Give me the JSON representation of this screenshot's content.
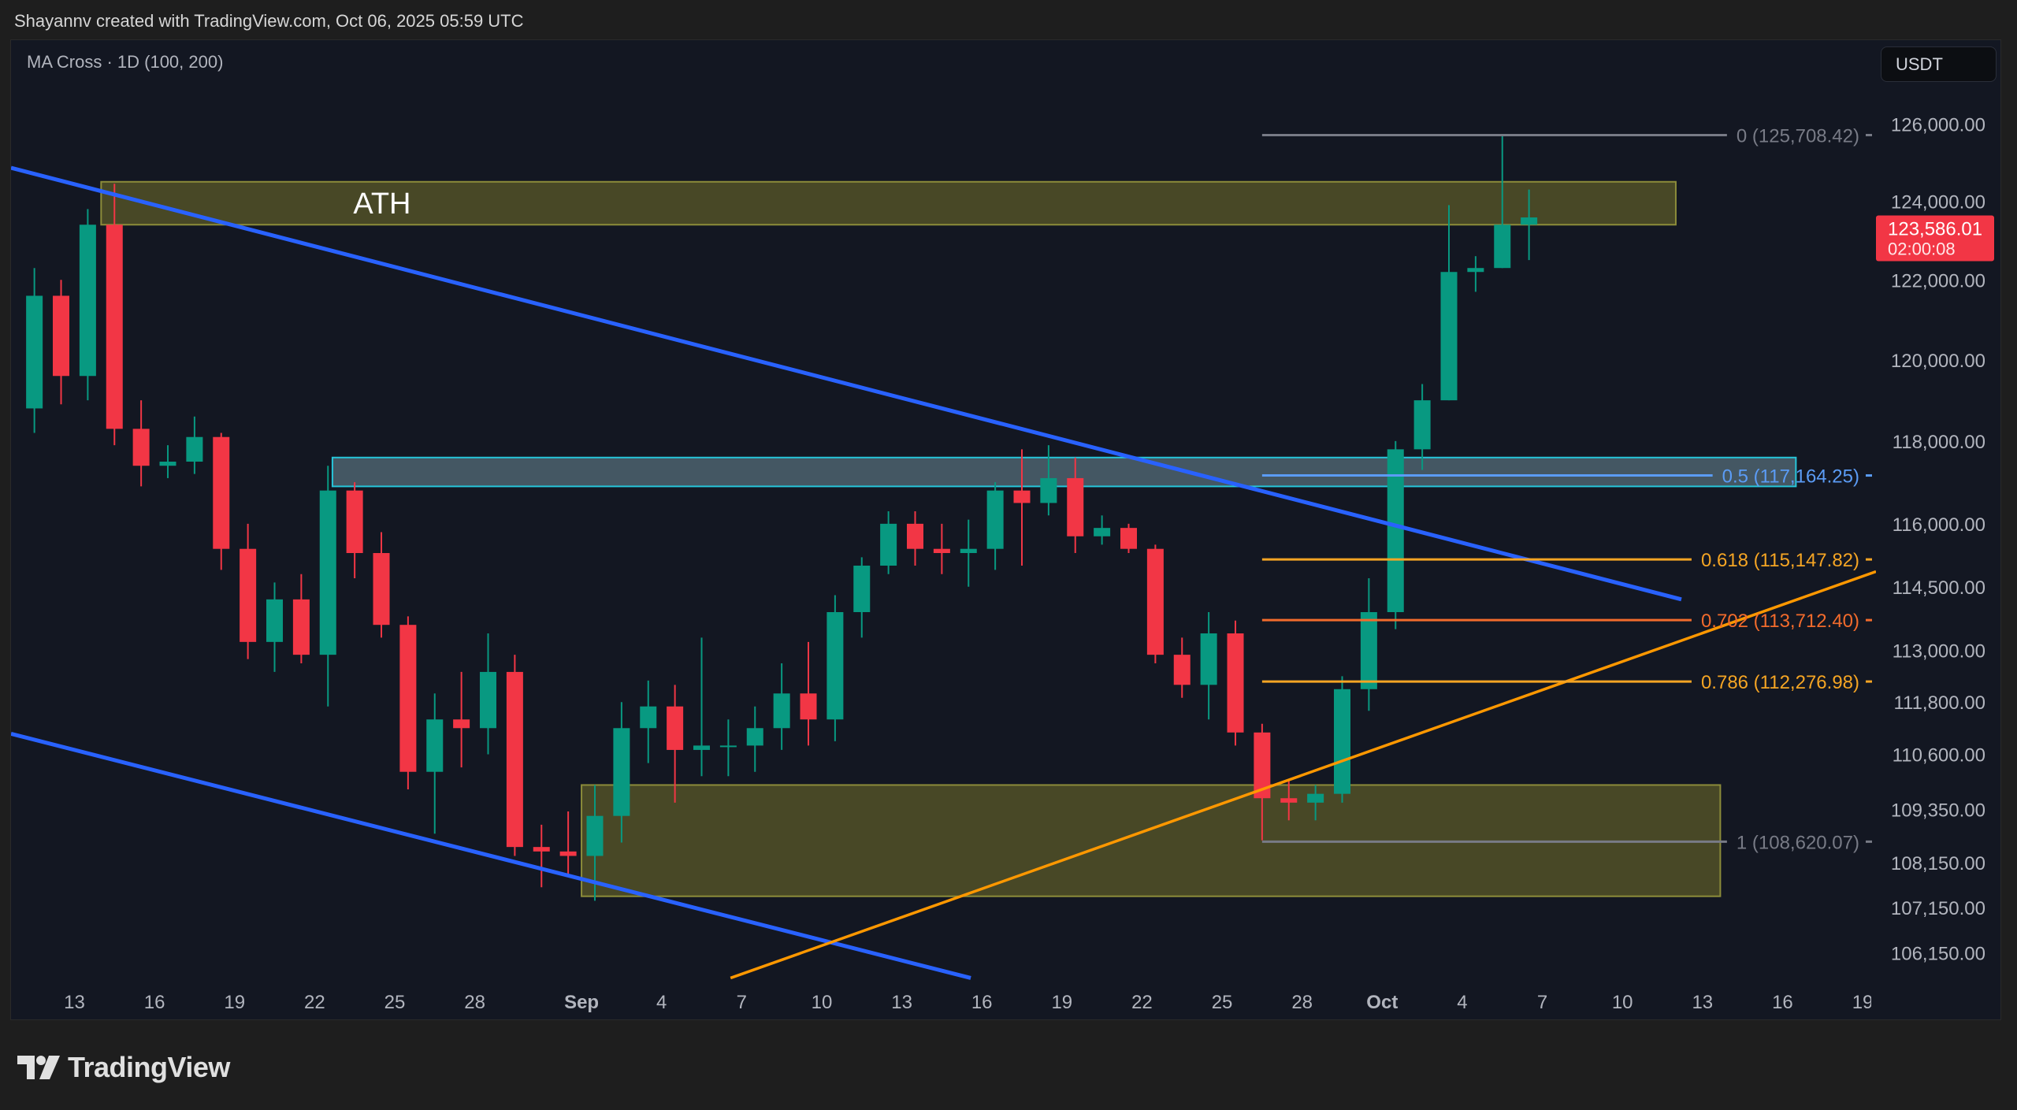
{
  "header": {
    "credit": "Shayannv created with TradingView.com, Oct 06, 2025 05:59 UTC"
  },
  "indicator": {
    "label": "MA Cross · 1D (100, 200)"
  },
  "currency": {
    "label": "USDT"
  },
  "branding": {
    "logo_text": "TradingView"
  },
  "colors": {
    "up": "#089981",
    "down": "#f23645",
    "trendline_blue": "#2962ff",
    "trendline_orange": "#ff9800",
    "zone_yellow": "#4b4b27",
    "zone_yellow_border": "#8c8c3a",
    "zone_blue": "#4a5e6a",
    "zone_blue_border": "#26c6da"
  },
  "chart_data": {
    "type": "candlestick",
    "symbol_quote": "USDT",
    "y_scale": "log",
    "ylim": [
      104700,
      128200
    ],
    "xlim": [
      "2025-08-10T15:00",
      "2025-10-19T12:00"
    ],
    "grid": false,
    "y_ticks": [
      126000,
      124000,
      122000,
      120000,
      118000,
      116000,
      114500,
      113000,
      111800,
      110600,
      109350,
      108150,
      107150,
      106150
    ],
    "y_tick_labels": [
      "126,000.00",
      "124,000.00",
      "122,000.00",
      "120,000.00",
      "118,000.00",
      "116,000.00",
      "114,500.00",
      "113,000.00",
      "111,800.00",
      "110,600.00",
      "109,350.00",
      "108,150.00",
      "107,150.00",
      "106,150.00"
    ],
    "x_ticks": [
      {
        "date": "2025-08-13",
        "label": "13"
      },
      {
        "date": "2025-08-16",
        "label": "16"
      },
      {
        "date": "2025-08-19",
        "label": "19"
      },
      {
        "date": "2025-08-22",
        "label": "22"
      },
      {
        "date": "2025-08-25",
        "label": "25"
      },
      {
        "date": "2025-08-28",
        "label": "28"
      },
      {
        "date": "2025-09-01",
        "label": "Sep",
        "bold": true
      },
      {
        "date": "2025-09-04",
        "label": "4"
      },
      {
        "date": "2025-09-07",
        "label": "7"
      },
      {
        "date": "2025-09-10",
        "label": "10"
      },
      {
        "date": "2025-09-13",
        "label": "13"
      },
      {
        "date": "2025-09-16",
        "label": "16"
      },
      {
        "date": "2025-09-19",
        "label": "19"
      },
      {
        "date": "2025-09-22",
        "label": "22"
      },
      {
        "date": "2025-09-25",
        "label": "25"
      },
      {
        "date": "2025-09-28",
        "label": "28"
      },
      {
        "date": "2025-10-01",
        "label": "Oct",
        "bold": true
      },
      {
        "date": "2025-10-04",
        "label": "4"
      },
      {
        "date": "2025-10-07",
        "label": "7"
      },
      {
        "date": "2025-10-10",
        "label": "10"
      },
      {
        "date": "2025-10-13",
        "label": "13"
      },
      {
        "date": "2025-10-16",
        "label": "16"
      },
      {
        "date": "2025-10-19",
        "label": "19"
      }
    ],
    "candles_columns": [
      "date",
      "open",
      "high",
      "low",
      "close"
    ],
    "candles": [
      [
        "2025-08-11",
        118800,
        122300,
        118200,
        121600
      ],
      [
        "2025-08-12",
        121600,
        122000,
        118900,
        119600
      ],
      [
        "2025-08-13",
        119600,
        123800,
        119000,
        123400
      ],
      [
        "2025-08-14",
        123400,
        124450,
        117900,
        118300
      ],
      [
        "2025-08-15",
        118300,
        119000,
        116900,
        117400
      ],
      [
        "2025-08-16",
        117400,
        117900,
        117100,
        117500
      ],
      [
        "2025-08-17",
        117500,
        118600,
        117200,
        118100
      ],
      [
        "2025-08-18",
        118100,
        118200,
        114900,
        115400
      ],
      [
        "2025-08-19",
        115400,
        116000,
        112800,
        113200
      ],
      [
        "2025-08-20",
        113200,
        114600,
        112500,
        114200
      ],
      [
        "2025-08-21",
        114200,
        114800,
        112700,
        112900
      ],
      [
        "2025-08-22",
        112900,
        117400,
        111700,
        116800
      ],
      [
        "2025-08-23",
        116800,
        117000,
        114700,
        115300
      ],
      [
        "2025-08-24",
        115300,
        115800,
        113300,
        113600
      ],
      [
        "2025-08-25",
        113600,
        113800,
        109800,
        110200
      ],
      [
        "2025-08-26",
        110200,
        112000,
        108800,
        111400
      ],
      [
        "2025-08-27",
        111400,
        112500,
        110300,
        111200
      ],
      [
        "2025-08-28",
        111200,
        113400,
        110600,
        112500
      ],
      [
        "2025-08-29",
        112500,
        112900,
        108300,
        108500
      ],
      [
        "2025-08-30",
        108500,
        109000,
        107600,
        108400
      ],
      [
        "2025-08-31",
        108400,
        109300,
        107900,
        108300
      ],
      [
        "2025-09-01",
        108300,
        109900,
        107300,
        109200
      ],
      [
        "2025-09-02",
        109200,
        111800,
        108600,
        111200
      ],
      [
        "2025-09-03",
        111200,
        112300,
        110400,
        111700
      ],
      [
        "2025-09-04",
        111700,
        112200,
        109500,
        110700
      ],
      [
        "2025-09-05",
        110700,
        113300,
        110100,
        110800
      ],
      [
        "2025-09-06",
        110800,
        111400,
        110100,
        110800
      ],
      [
        "2025-09-07",
        110800,
        111700,
        110200,
        111200
      ],
      [
        "2025-09-08",
        111200,
        112700,
        110700,
        112000
      ],
      [
        "2025-09-09",
        112000,
        113200,
        110800,
        111400
      ],
      [
        "2025-09-10",
        111400,
        114300,
        110900,
        113900
      ],
      [
        "2025-09-11",
        113900,
        115200,
        113300,
        115000
      ],
      [
        "2025-09-12",
        115000,
        116300,
        114800,
        116000
      ],
      [
        "2025-09-13",
        116000,
        116300,
        115000,
        115400
      ],
      [
        "2025-09-14",
        115400,
        116000,
        114800,
        115300
      ],
      [
        "2025-09-15",
        115300,
        116100,
        114500,
        115400
      ],
      [
        "2025-09-16",
        115400,
        117000,
        114900,
        116800
      ],
      [
        "2025-09-17",
        116800,
        117800,
        115000,
        116500
      ],
      [
        "2025-09-18",
        116500,
        117900,
        116200,
        117100
      ],
      [
        "2025-09-19",
        117100,
        117600,
        115300,
        115700
      ],
      [
        "2025-09-20",
        115700,
        116200,
        115500,
        115900
      ],
      [
        "2025-09-21",
        115900,
        116000,
        115300,
        115400
      ],
      [
        "2025-09-22",
        115400,
        115500,
        112700,
        112900
      ],
      [
        "2025-09-23",
        112900,
        113300,
        111900,
        112200
      ],
      [
        "2025-09-24",
        112200,
        113900,
        111400,
        113400
      ],
      [
        "2025-09-25",
        113400,
        113700,
        110800,
        111100
      ],
      [
        "2025-09-26",
        111100,
        111300,
        108650,
        109600
      ],
      [
        "2025-09-27",
        109600,
        110000,
        109100,
        109500
      ],
      [
        "2025-09-28",
        109500,
        109900,
        109100,
        109700
      ],
      [
        "2025-09-29",
        109700,
        112400,
        109500,
        112100
      ],
      [
        "2025-09-30",
        112100,
        114700,
        111600,
        113900
      ],
      [
        "2025-10-01",
        113900,
        118000,
        113500,
        117800
      ],
      [
        "2025-10-02",
        117800,
        119400,
        117300,
        119000
      ],
      [
        "2025-10-03",
        119000,
        123900,
        119000,
        122200
      ],
      [
        "2025-10-04",
        122200,
        122600,
        121700,
        122300
      ],
      [
        "2025-10-05",
        122300,
        125708,
        122300,
        123400
      ],
      [
        "2025-10-06",
        123400,
        124300,
        122500,
        123586
      ]
    ],
    "current_price": {
      "value": 123586.01,
      "label": "123,586.01",
      "countdown": "02:00:08",
      "color": "#f23645"
    },
    "zones": [
      {
        "name": "ATH",
        "label": "ATH",
        "from": "2025-08-14T00:00",
        "to": "2025-10-12T00:00",
        "top": 124500,
        "bottom": 123400,
        "color": "yellow"
      },
      {
        "name": "resistance",
        "label": "",
        "from": "2025-08-22T16:00",
        "to": "2025-10-16T12:00",
        "top": 117600,
        "bottom": 116900,
        "color": "blue"
      },
      {
        "name": "support",
        "label": "",
        "from": "2025-09-01T00:00",
        "to": "2025-10-13T16:00",
        "top": 109900,
        "bottom": 107400,
        "color": "yellow"
      }
    ],
    "trendlines": [
      {
        "name": "upper-channel",
        "color": "#2962ff",
        "from": [
          "2025-08-10T15:00",
          124860
        ],
        "to": [
          "2025-10-12T05:00",
          114200
        ]
      },
      {
        "name": "lower-channel",
        "color": "#2962ff",
        "from": [
          "2025-08-10T15:00",
          111070
        ],
        "to": [
          "2025-09-15T14:00",
          105600
        ]
      },
      {
        "name": "ascending-support",
        "color": "#ff9800",
        "from": [
          "2025-09-06T14:00",
          105600
        ],
        "to": [
          "2025-10-19T12:00",
          114860
        ]
      }
    ],
    "fibonacci": {
      "start": "2025-09-26T12:00",
      "levels": [
        {
          "ratio": "0",
          "price": 125708.42,
          "label": "0 (125,708.42)",
          "color": "#787b86"
        },
        {
          "ratio": "0.5",
          "price": 117164.25,
          "label": "0.5 (117,164.25)",
          "color": "#5b9cf6"
        },
        {
          "ratio": "0.618",
          "price": 115147.82,
          "label": "0.618 (115,147.82)",
          "color": "#f5a524"
        },
        {
          "ratio": "0.702",
          "price": 113712.4,
          "label": "0.702 (113,712.40)",
          "color": "#f26b2c"
        },
        {
          "ratio": "0.786",
          "price": 112276.98,
          "label": "0.786 (112,276.98)",
          "color": "#f5a524"
        },
        {
          "ratio": "1",
          "price": 108620.07,
          "label": "1 (108,620.07)",
          "color": "#787b86"
        }
      ]
    }
  }
}
